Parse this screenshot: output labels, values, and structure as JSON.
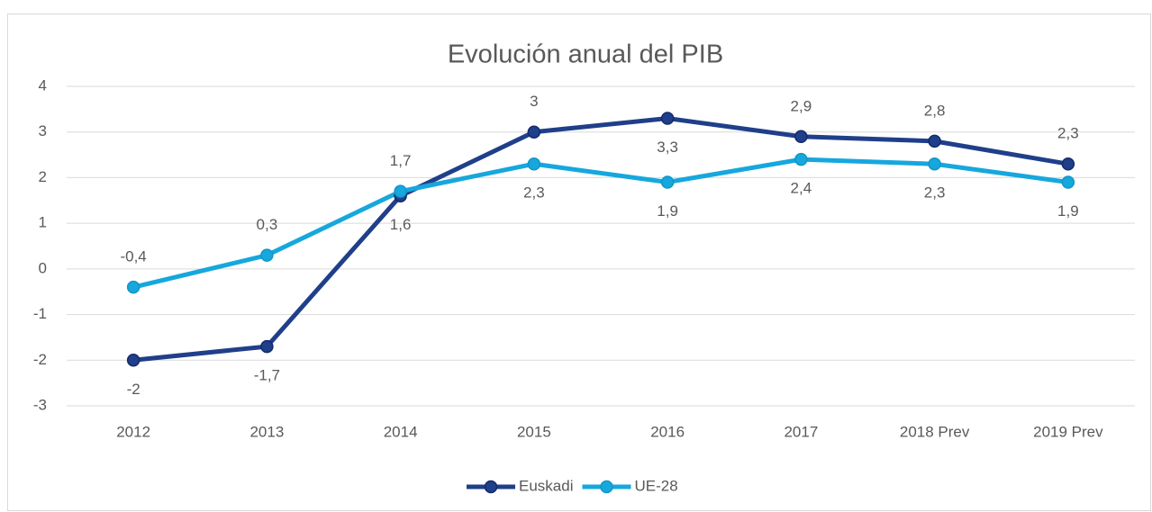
{
  "chart_data": {
    "type": "line",
    "title": "Evolución anual del PIB",
    "categories": [
      "2012",
      "2013",
      "2014",
      "2015",
      "2016",
      "2017",
      "2018 Prev",
      "2019 Prev"
    ],
    "series": [
      {
        "name": "Euskadi",
        "color": "#203f8a",
        "values": [
          -2,
          -1.7,
          1.6,
          3,
          3.3,
          2.9,
          2.8,
          2.3
        ],
        "value_labels": [
          "-2",
          "-1,7",
          "1,6",
          "3",
          "3,3",
          "2,9",
          "2,8",
          "2,3"
        ]
      },
      {
        "name": "UE-28",
        "color": "#16a7dd",
        "values": [
          -0.4,
          0.3,
          1.7,
          2.3,
          1.9,
          2.4,
          2.3,
          1.9
        ],
        "value_labels": [
          "-0,4",
          "0,3",
          "1,7",
          "2,3",
          "1,9",
          "2,4",
          "2,3",
          "1,9"
        ]
      }
    ],
    "ylim": [
      -3,
      4
    ],
    "yticks": [
      -3,
      -2,
      -1,
      0,
      1,
      2,
      3,
      4
    ],
    "grid": true,
    "legend": "bottom"
  }
}
